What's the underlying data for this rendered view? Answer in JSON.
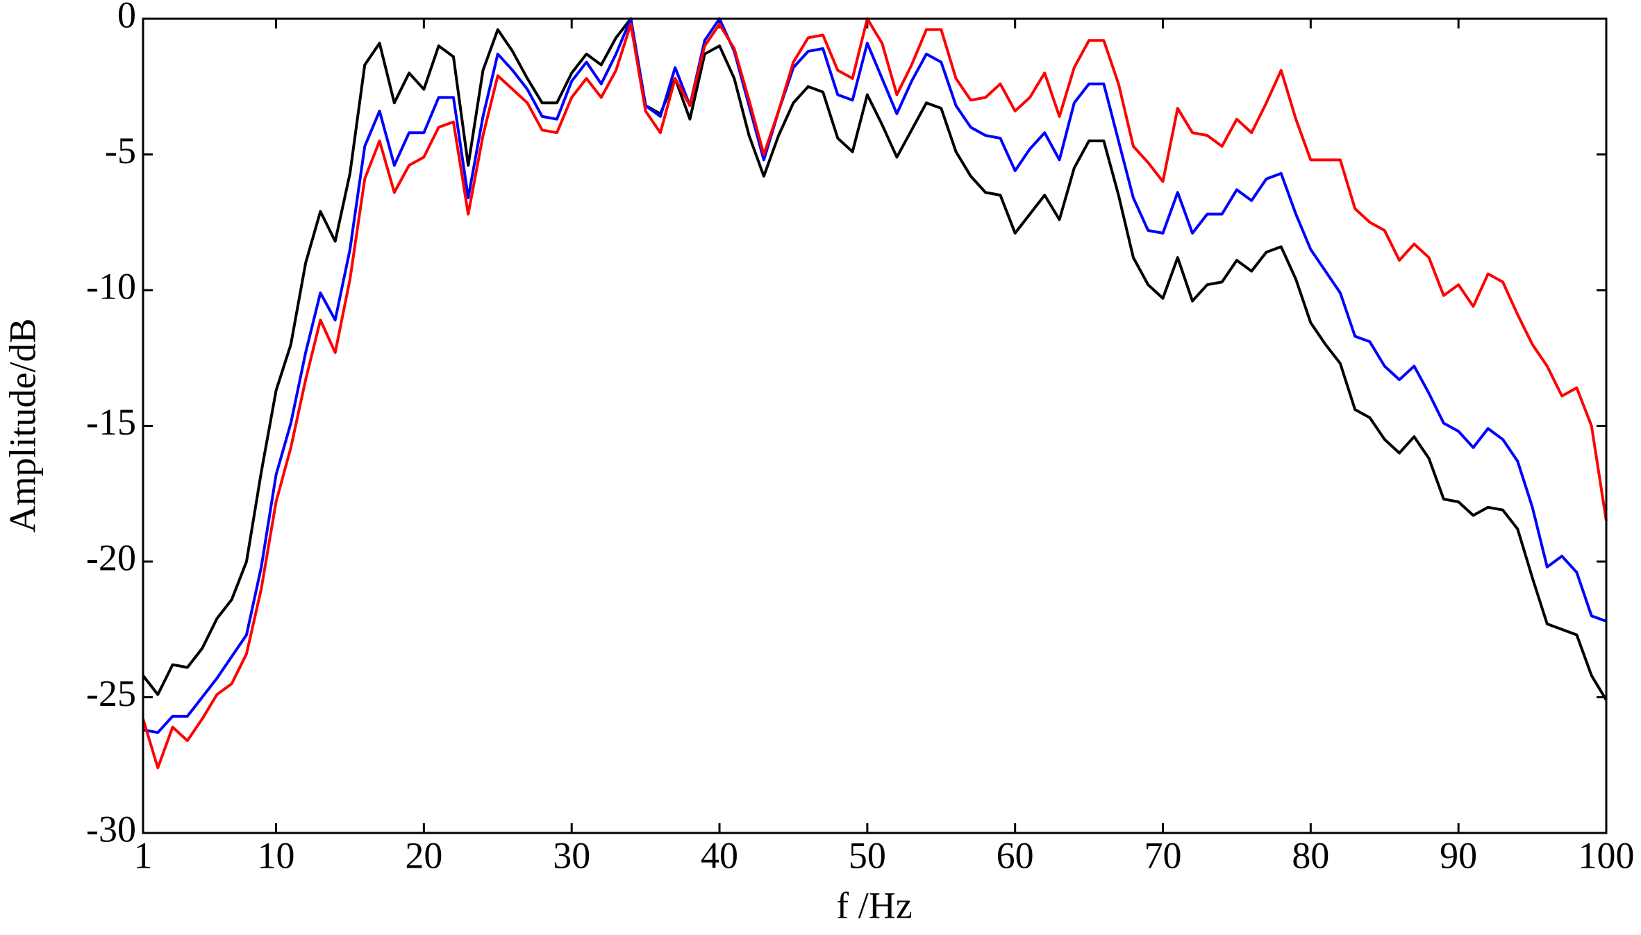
{
  "chart_data": {
    "type": "line",
    "xlabel": "f /Hz",
    "ylabel": "Amplitude/dB",
    "x": [
      1,
      2,
      3,
      4,
      5,
      6,
      7,
      8,
      9,
      10,
      11,
      12,
      13,
      14,
      15,
      16,
      17,
      18,
      19,
      20,
      21,
      22,
      23,
      24,
      25,
      26,
      27,
      28,
      29,
      30,
      31,
      32,
      33,
      34,
      35,
      36,
      37,
      38,
      39,
      40,
      41,
      42,
      43,
      44,
      45,
      46,
      47,
      48,
      49,
      50,
      51,
      52,
      53,
      54,
      55,
      56,
      57,
      58,
      59,
      60,
      61,
      62,
      63,
      64,
      65,
      66,
      67,
      68,
      69,
      70,
      71,
      72,
      73,
      74,
      75,
      76,
      77,
      78,
      79,
      80,
      81,
      82,
      83,
      84,
      85,
      86,
      87,
      88,
      89,
      90,
      91,
      92,
      93,
      94,
      95,
      96,
      97,
      98,
      99,
      100
    ],
    "series": [
      {
        "color": "#000000",
        "values": [
          -24.2,
          -24.9,
          -23.8,
          -23.9,
          -23.2,
          -22.1,
          -21.4,
          -20.0,
          -16.7,
          -13.7,
          -12.0,
          -9.0,
          -7.1,
          -8.2,
          -5.7,
          -1.7,
          -0.9,
          -3.1,
          -2.0,
          -2.6,
          -1.0,
          -1.4,
          -5.4,
          -1.9,
          -0.4,
          -1.2,
          -2.2,
          -3.1,
          -3.1,
          -2.0,
          -1.3,
          -1.7,
          -0.7,
          0,
          -3.2,
          -3.5,
          -2.2,
          -3.7,
          -1.3,
          -1.0,
          -2.2,
          -4.3,
          -5.8,
          -4.3,
          -3.1,
          -2.5,
          -2.7,
          -4.4,
          -4.9,
          -2.8,
          -3.9,
          -5.1,
          -4.1,
          -3.1,
          -3.3,
          -4.9,
          -5.8,
          -6.4,
          -6.5,
          -7.9,
          -7.2,
          -6.5,
          -7.4,
          -5.5,
          -4.5,
          -4.5,
          -6.5,
          -8.8,
          -9.8,
          -10.3,
          -8.8,
          -10.4,
          -9.8,
          -9.7,
          -8.9,
          -9.3,
          -8.6,
          -8.4,
          -9.6,
          -11.2,
          -12.0,
          -12.7,
          -14.4,
          -14.7,
          -15.5,
          -16.0,
          -15.4,
          -16.2,
          -17.7,
          -17.8,
          -18.3,
          -18.0,
          -18.1,
          -18.8,
          -20.6,
          -22.3,
          -22.5,
          -22.7,
          -24.2,
          -25.1
        ]
      },
      {
        "color": "#0000ff",
        "values": [
          -26.2,
          -26.3,
          -25.7,
          -25.7,
          -25.0,
          -24.3,
          -23.5,
          -22.7,
          -20.2,
          -16.8,
          -14.9,
          -12.3,
          -10.1,
          -11.1,
          -8.5,
          -4.7,
          -3.4,
          -5.4,
          -4.2,
          -4.2,
          -2.9,
          -2.9,
          -6.6,
          -3.6,
          -1.3,
          -1.9,
          -2.6,
          -3.6,
          -3.7,
          -2.3,
          -1.6,
          -2.4,
          -1.3,
          0,
          -3.2,
          -3.6,
          -1.8,
          -3.2,
          -0.8,
          0,
          -1.2,
          -3.2,
          -5.2,
          -3.4,
          -1.8,
          -1.2,
          -1.1,
          -2.8,
          -3.0,
          -0.9,
          -2.2,
          -3.5,
          -2.3,
          -1.3,
          -1.6,
          -3.2,
          -4.0,
          -4.3,
          -4.4,
          -5.6,
          -4.8,
          -4.2,
          -5.2,
          -3.1,
          -2.4,
          -2.4,
          -4.5,
          -6.6,
          -7.8,
          -7.9,
          -6.4,
          -7.9,
          -7.2,
          -7.2,
          -6.3,
          -6.7,
          -5.9,
          -5.7,
          -7.2,
          -8.5,
          -9.3,
          -10.1,
          -11.7,
          -11.9,
          -12.8,
          -13.3,
          -12.8,
          -13.8,
          -14.9,
          -15.2,
          -15.8,
          -15.1,
          -15.5,
          -16.3,
          -18.0,
          -20.2,
          -19.8,
          -20.4,
          -22.0,
          -22.2
        ]
      },
      {
        "color": "#ff0000",
        "values": [
          -25.8,
          -27.6,
          -26.1,
          -26.6,
          -25.8,
          -24.9,
          -24.5,
          -23.4,
          -21.0,
          -17.8,
          -15.8,
          -13.3,
          -11.1,
          -12.3,
          -9.6,
          -5.9,
          -4.5,
          -6.4,
          -5.4,
          -5.1,
          -4.0,
          -3.8,
          -7.2,
          -4.3,
          -2.1,
          -2.6,
          -3.1,
          -4.1,
          -4.2,
          -2.9,
          -2.2,
          -2.9,
          -1.9,
          -0.2,
          -3.4,
          -4.2,
          -2.2,
          -3.2,
          -1.0,
          -0.2,
          -1.1,
          -3.0,
          -5.0,
          -3.4,
          -1.6,
          -0.7,
          -0.6,
          -1.9,
          -2.2,
          0,
          -0.9,
          -2.8,
          -1.7,
          -0.4,
          -0.4,
          -2.2,
          -3.0,
          -2.9,
          -2.4,
          -3.4,
          -2.9,
          -2.0,
          -3.6,
          -1.8,
          -0.8,
          -0.8,
          -2.4,
          -4.7,
          -5.3,
          -6.0,
          -3.3,
          -4.2,
          -4.3,
          -4.7,
          -3.7,
          -4.2,
          -3.1,
          -1.9,
          -3.7,
          -5.2,
          -5.2,
          -5.2,
          -7.0,
          -7.5,
          -7.8,
          -8.9,
          -8.3,
          -8.8,
          -10.2,
          -9.8,
          -10.6,
          -9.4,
          -9.7,
          -10.9,
          -12.0,
          -12.8,
          -13.9,
          -13.6,
          -15.0,
          -18.5
        ]
      }
    ],
    "xlim": [
      1,
      100
    ],
    "xticks": [
      1,
      10,
      20,
      30,
      40,
      50,
      60,
      70,
      80,
      90,
      100
    ],
    "ylim": [
      -30,
      0
    ],
    "yticks": [
      -30,
      -25,
      -20,
      -15,
      -10,
      -5,
      0
    ],
    "grid": false
  }
}
